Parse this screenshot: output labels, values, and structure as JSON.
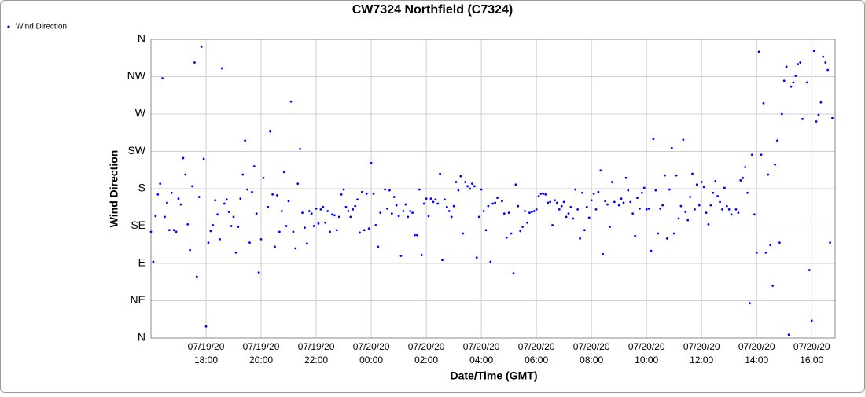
{
  "chart_data": {
    "type": "scatter",
    "title": "CW7324 Northfield (C7324)",
    "x_label": "Date/Time (GMT)",
    "y_label": "Wind Direction",
    "legend": "top-left",
    "grid": true,
    "xlim": [
      "07/19/20 16:00",
      "07/20/20 16:51"
    ],
    "xticks": [
      "07/19/20 18:00",
      "07/19/20 20:00",
      "07/19/20 22:00",
      "07/20/20 00:00",
      "07/20/20 02:00",
      "07/20/20 04:00",
      "07/20/20 06:00",
      "07/20/20 08:00",
      "07/20/20 10:00",
      "07/20/20 12:00",
      "07/20/20 14:00",
      "07/20/20 16:00"
    ],
    "ylim": [
      0,
      360
    ],
    "yticks": [
      {
        "value": 0,
        "label": "N"
      },
      {
        "value": 45,
        "label": "NE"
      },
      {
        "value": 90,
        "label": "E"
      },
      {
        "value": 135,
        "label": "SE"
      },
      {
        "value": 180,
        "label": "S"
      },
      {
        "value": 225,
        "label": "SW"
      },
      {
        "value": 270,
        "label": "W"
      },
      {
        "value": 315,
        "label": "NW"
      },
      {
        "value": 360,
        "label": "N"
      }
    ],
    "x": [
      "07/19/20 16:00",
      "07/19/20 16:05",
      "07/19/20 16:10",
      "07/19/20 16:15",
      "07/19/20 16:20",
      "07/19/20 16:25",
      "07/19/20 16:30",
      "07/19/20 16:35",
      "07/19/20 16:40",
      "07/19/20 16:45",
      "07/19/20 16:50",
      "07/19/20 16:55",
      "07/19/20 17:00",
      "07/19/20 17:05",
      "07/19/20 17:10",
      "07/19/20 17:15",
      "07/19/20 17:20",
      "07/19/20 17:25",
      "07/19/20 17:30",
      "07/19/20 17:35",
      "07/19/20 17:40",
      "07/19/20 17:45",
      "07/19/20 17:50",
      "07/19/20 17:55",
      "07/19/20 18:00",
      "07/19/20 18:05",
      "07/19/20 18:10",
      "07/19/20 18:15",
      "07/19/20 18:20",
      "07/19/20 18:25",
      "07/19/20 18:30",
      "07/19/20 18:35",
      "07/19/20 18:40",
      "07/19/20 18:45",
      "07/19/20 18:50",
      "07/19/20 18:55",
      "07/19/20 19:00",
      "07/19/20 19:05",
      "07/19/20 19:10",
      "07/19/20 19:15",
      "07/19/20 19:20",
      "07/19/20 19:25",
      "07/19/20 19:30",
      "07/19/20 19:35",
      "07/19/20 19:40",
      "07/19/20 19:45",
      "07/19/20 19:50",
      "07/19/20 19:55",
      "07/19/20 20:00",
      "07/19/20 20:05",
      "07/19/20 20:15",
      "07/19/20 20:20",
      "07/19/20 20:25",
      "07/19/20 20:30",
      "07/19/20 20:35",
      "07/19/20 20:40",
      "07/19/20 20:45",
      "07/19/20 20:50",
      "07/19/20 20:55",
      "07/19/20 21:00",
      "07/19/20 21:05",
      "07/19/20 21:10",
      "07/19/20 21:15",
      "07/19/20 21:20",
      "07/19/20 21:25",
      "07/19/20 21:30",
      "07/19/20 21:35",
      "07/19/20 21:40",
      "07/19/20 21:45",
      "07/19/20 21:50",
      "07/19/20 21:55",
      "07/19/20 22:00",
      "07/19/20 22:05",
      "07/19/20 22:10",
      "07/19/20 22:15",
      "07/19/20 22:20",
      "07/19/20 22:25",
      "07/19/20 22:30",
      "07/19/20 22:35",
      "07/19/20 22:40",
      "07/19/20 22:45",
      "07/19/20 22:50",
      "07/19/20 22:55",
      "07/19/20 23:00",
      "07/19/20 23:05",
      "07/19/20 23:10",
      "07/19/20 23:15",
      "07/19/20 23:20",
      "07/19/20 23:25",
      "07/19/20 23:30",
      "07/19/20 23:35",
      "07/19/20 23:40",
      "07/19/20 23:45",
      "07/19/20 23:50",
      "07/19/20 23:55",
      "07/20/20 00:00",
      "07/20/20 00:05",
      "07/20/20 00:10",
      "07/20/20 00:15",
      "07/20/20 00:20",
      "07/20/20 00:30",
      "07/20/20 00:35",
      "07/20/20 00:40",
      "07/20/20 00:45",
      "07/20/20 00:50",
      "07/20/20 00:55",
      "07/20/20 01:00",
      "07/20/20 01:05",
      "07/20/20 01:10",
      "07/20/20 01:15",
      "07/20/20 01:20",
      "07/20/20 01:25",
      "07/20/20 01:30",
      "07/20/20 01:35",
      "07/20/20 01:40",
      "07/20/20 01:45",
      "07/20/20 01:50",
      "07/20/20 01:55",
      "07/20/20 02:00",
      "07/20/20 02:05",
      "07/20/20 02:10",
      "07/20/20 02:15",
      "07/20/20 02:20",
      "07/20/20 02:25",
      "07/20/20 02:30",
      "07/20/20 02:35",
      "07/20/20 02:40",
      "07/20/20 02:45",
      "07/20/20 02:50",
      "07/20/20 02:55",
      "07/20/20 03:00",
      "07/20/20 03:05",
      "07/20/20 03:10",
      "07/20/20 03:15",
      "07/20/20 03:20",
      "07/20/20 03:25",
      "07/20/20 03:30",
      "07/20/20 03:35",
      "07/20/20 03:40",
      "07/20/20 03:45",
      "07/20/20 03:50",
      "07/20/20 03:55",
      "07/20/20 04:00",
      "07/20/20 04:05",
      "07/20/20 04:10",
      "07/20/20 04:15",
      "07/20/20 04:20",
      "07/20/20 04:25",
      "07/20/20 04:30",
      "07/20/20 04:35",
      "07/20/20 04:45",
      "07/20/20 04:50",
      "07/20/20 04:55",
      "07/20/20 05:00",
      "07/20/20 05:05",
      "07/20/20 05:10",
      "07/20/20 05:15",
      "07/20/20 05:20",
      "07/20/20 05:25",
      "07/20/20 05:30",
      "07/20/20 05:35",
      "07/20/20 05:40",
      "07/20/20 05:45",
      "07/20/20 05:50",
      "07/20/20 05:55",
      "07/20/20 06:00",
      "07/20/20 06:05",
      "07/20/20 06:10",
      "07/20/20 06:15",
      "07/20/20 06:20",
      "07/20/20 06:25",
      "07/20/20 06:30",
      "07/20/20 06:35",
      "07/20/20 06:40",
      "07/20/20 06:45",
      "07/20/20 06:50",
      "07/20/20 06:55",
      "07/20/20 07:00",
      "07/20/20 07:05",
      "07/20/20 07:10",
      "07/20/20 07:15",
      "07/20/20 07:20",
      "07/20/20 07:25",
      "07/20/20 07:30",
      "07/20/20 07:35",
      "07/20/20 07:40",
      "07/20/20 07:45",
      "07/20/20 07:50",
      "07/20/20 07:55",
      "07/20/20 08:00",
      "07/20/20 08:05",
      "07/20/20 08:10",
      "07/20/20 08:15",
      "07/20/20 08:20",
      "07/20/20 08:25",
      "07/20/20 08:30",
      "07/20/20 08:35",
      "07/20/20 08:40",
      "07/20/20 08:45",
      "07/20/20 08:50",
      "07/20/20 09:00",
      "07/20/20 09:05",
      "07/20/20 09:10",
      "07/20/20 09:15",
      "07/20/20 09:20",
      "07/20/20 09:25",
      "07/20/20 09:30",
      "07/20/20 09:35",
      "07/20/20 09:40",
      "07/20/20 09:45",
      "07/20/20 09:50",
      "07/20/20 09:55",
      "07/20/20 10:00",
      "07/20/20 10:05",
      "07/20/20 10:10",
      "07/20/20 10:15",
      "07/20/20 10:20",
      "07/20/20 10:25",
      "07/20/20 10:30",
      "07/20/20 10:35",
      "07/20/20 10:40",
      "07/20/20 10:45",
      "07/20/20 10:50",
      "07/20/20 10:55",
      "07/20/20 11:00",
      "07/20/20 11:05",
      "07/20/20 11:10",
      "07/20/20 11:15",
      "07/20/20 11:20",
      "07/20/20 11:25",
      "07/20/20 11:30",
      "07/20/20 11:35",
      "07/20/20 11:40",
      "07/20/20 11:45",
      "07/20/20 11:50",
      "07/20/20 11:55",
      "07/20/20 12:00",
      "07/20/20 12:05",
      "07/20/20 12:10",
      "07/20/20 12:15",
      "07/20/20 12:20",
      "07/20/20 12:25",
      "07/20/20 12:30",
      "07/20/20 12:35",
      "07/20/20 12:40",
      "07/20/20 12:45",
      "07/20/20 12:50",
      "07/20/20 12:55",
      "07/20/20 13:00",
      "07/20/20 13:05",
      "07/20/20 13:15",
      "07/20/20 13:20",
      "07/20/20 13:25",
      "07/20/20 13:30",
      "07/20/20 13:35",
      "07/20/20 13:40",
      "07/20/20 13:45",
      "07/20/20 13:50",
      "07/20/20 13:55",
      "07/20/20 14:00",
      "07/20/20 14:05",
      "07/20/20 14:10",
      "07/20/20 14:15",
      "07/20/20 14:20",
      "07/20/20 14:25",
      "07/20/20 14:30",
      "07/20/20 14:35",
      "07/20/20 14:40",
      "07/20/20 14:45",
      "07/20/20 14:50",
      "07/20/20 14:55",
      "07/20/20 15:00",
      "07/20/20 15:05",
      "07/20/20 15:10",
      "07/20/20 15:15",
      "07/20/20 15:20",
      "07/20/20 15:25",
      "07/20/20 15:30",
      "07/20/20 15:35",
      "07/20/20 15:40",
      "07/20/20 15:50",
      "07/20/20 15:55",
      "07/20/20 16:00",
      "07/20/20 16:05",
      "07/20/20 16:10",
      "07/20/20 16:15",
      "07/20/20 16:20",
      "07/20/20 16:25",
      "07/20/20 16:30",
      "07/20/20 16:35",
      "07/20/20 16:40",
      "07/20/20 16:45"
    ],
    "series": [
      {
        "name": "Wind Direction",
        "color": "#0000ff",
        "values": [
          128,
          92,
          147,
          173,
          186,
          313,
          146,
          163,
          130,
          175,
          130,
          128,
          168,
          161,
          217,
          197,
          137,
          106,
          183,
          332,
          74,
          170,
          351,
          216,
          14,
          115,
          129,
          136,
          166,
          149,
          119,
          325,
          162,
          167,
          152,
          135,
          146,
          103,
          134,
          168,
          197,
          238,
          179,
          115,
          176,
          207,
          150,
          79,
          119,
          193,
          158,
          249,
          173,
          110,
          172,
          128,
          153,
          200,
          135,
          165,
          285,
          128,
          108,
          186,
          228,
          151,
          133,
          114,
          153,
          150,
          135,
          156,
          138,
          155,
          158,
          139,
          153,
          128,
          149,
          148,
          130,
          146,
          173,
          179,
          158,
          153,
          146,
          155,
          159,
          167,
          127,
          176,
          130,
          174,
          132,
          211,
          174,
          136,
          110,
          151,
          179,
          156,
          178,
          150,
          170,
          160,
          147,
          99,
          153,
          161,
          146,
          153,
          151,
          124,
          124,
          179,
          100,
          162,
          168,
          147,
          168,
          164,
          167,
          162,
          198,
          94,
          167,
          158,
          153,
          146,
          159,
          188,
          178,
          195,
          126,
          188,
          183,
          180,
          186,
          183,
          97,
          146,
          179,
          153,
          130,
          159,
          92,
          162,
          163,
          169,
          165,
          150,
          121,
          151,
          126,
          78,
          185,
          159,
          129,
          134,
          153,
          139,
          151,
          152,
          153,
          155,
          171,
          174,
          174,
          173,
          163,
          164,
          136,
          166,
          163,
          155,
          159,
          164,
          146,
          150,
          158,
          144,
          179,
          155,
          120,
          175,
          130,
          158,
          145,
          166,
          174,
          155,
          176,
          202,
          101,
          165,
          161,
          134,
          188,
          164,
          160,
          168,
          163,
          193,
          178,
          164,
          150,
          123,
          169,
          156,
          175,
          181,
          155,
          156,
          105,
          240,
          178,
          126,
          156,
          160,
          196,
          120,
          179,
          229,
          126,
          196,
          144,
          159,
          239,
          152,
          142,
          170,
          198,
          155,
          185,
          160,
          188,
          182,
          151,
          137,
          160,
          175,
          189,
          171,
          164,
          155,
          181,
          159,
          155,
          149,
          155,
          151,
          190,
          193,
          206,
          175,
          42,
          221,
          149,
          103,
          345,
          221,
          283,
          103,
          197,
          112,
          63,
          209,
          238,
          115,
          270,
          310,
          327,
          4,
          303,
          308,
          316,
          330,
          332,
          264,
          308,
          82,
          21,
          346,
          261,
          269,
          284,
          339,
          332,
          323,
          115,
          265
        ]
      }
    ]
  }
}
